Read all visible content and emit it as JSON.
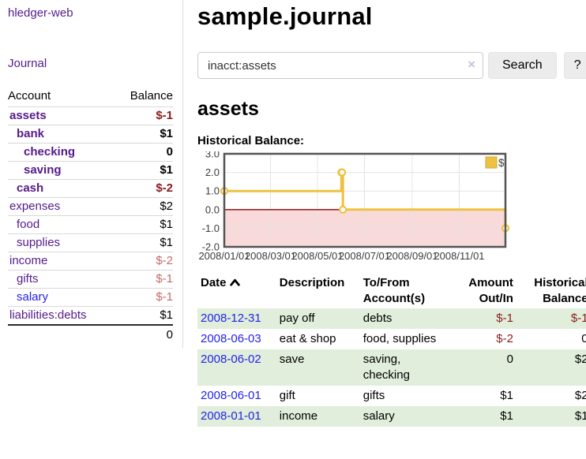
{
  "colors": {
    "link_purple": "#551a8b",
    "link_blue": "#2323e8",
    "negative_strong": "#8b1a1a",
    "negative_soft": "#c46a6a",
    "row_green": "#e0eedb",
    "chart_line_yellow": "#edc240",
    "chart_zero_line": "#8b0000",
    "chart_negative_region": "#f9dada"
  },
  "sidebar": {
    "brand": "hledger-web",
    "journal_label": "Journal",
    "accounts_header": {
      "account": "Account",
      "balance": "Balance"
    },
    "accounts": [
      {
        "name": "assets",
        "indent": 1,
        "bold": true,
        "color": "purple",
        "balance": "$-1",
        "bclass": "neg-strong"
      },
      {
        "name": "bank",
        "indent": 2,
        "bold": true,
        "color": "purple",
        "balance": "$1",
        "bclass": "pos"
      },
      {
        "name": "checking",
        "indent": 3,
        "bold": true,
        "color": "purple",
        "balance": "0",
        "bclass": "pos"
      },
      {
        "name": "saving",
        "indent": 3,
        "bold": true,
        "color": "purple",
        "balance": "$1",
        "bclass": "pos"
      },
      {
        "name": "cash",
        "indent": 2,
        "bold": true,
        "color": "purple",
        "balance": "$-2",
        "bclass": "neg-strong"
      },
      {
        "name": "expenses",
        "indent": 1,
        "bold": false,
        "color": "purple",
        "balance": "$2",
        "bclass": "pos"
      },
      {
        "name": "food",
        "indent": 2,
        "bold": false,
        "color": "purple",
        "balance": "$1",
        "bclass": "pos"
      },
      {
        "name": "supplies",
        "indent": 2,
        "bold": false,
        "color": "purple",
        "balance": "$1",
        "bclass": "pos"
      },
      {
        "name": "income",
        "indent": 1,
        "bold": false,
        "color": "purple",
        "balance": "$-2",
        "bclass": "neg-soft"
      },
      {
        "name": "gifts",
        "indent": 2,
        "bold": false,
        "color": "purple",
        "balance": "$-1",
        "bclass": "neg-soft"
      },
      {
        "name": "salary",
        "indent": 2,
        "bold": false,
        "color": "blue",
        "balance": "$-1",
        "bclass": "neg-soft"
      },
      {
        "name": "liabilities:debts",
        "indent": 1,
        "bold": false,
        "color": "purple",
        "balance": "$1",
        "bclass": "pos"
      }
    ],
    "accounts_total": "0"
  },
  "main": {
    "title": "sample.journal",
    "search": {
      "value": "inacct:assets",
      "clear_icon": "×",
      "button_label": "Search",
      "help_label": "?"
    },
    "account_heading": "assets",
    "chart_label": "Historical Balance:"
  },
  "chart_data": {
    "type": "line",
    "step": true,
    "title": "Historical Balance",
    "series": [
      {
        "name": "$",
        "color": "#edc240",
        "points": [
          [
            "2008-01-01",
            1.0
          ],
          [
            "2008-06-01",
            2.0
          ],
          [
            "2008-06-02",
            2.0
          ],
          [
            "2008-06-03",
            0.0
          ],
          [
            "2008-12-31",
            -1.0
          ]
        ]
      }
    ],
    "x_range": [
      "2008-01-01",
      "2008-12-31"
    ],
    "x_ticks": [
      {
        "date": "2008-01-01",
        "label": "2008/01/01"
      },
      {
        "date": "2008-03-01",
        "label": "2008/03/01"
      },
      {
        "date": "2008-05-01",
        "label": "2008/05/01"
      },
      {
        "date": "2008-07-01",
        "label": "2008/07/01"
      },
      {
        "date": "2008-09-01",
        "label": "2008/09/01"
      },
      {
        "date": "2008-11-01",
        "label": "2008/11/01"
      }
    ],
    "ylim": [
      -2.0,
      3.0
    ],
    "y_ticks": [
      "3.0",
      "2.0",
      "1.0",
      "0.0",
      "-1.0",
      "-2.0"
    ],
    "grid": true,
    "legend": {
      "position": "top-right",
      "entries": [
        {
          "label": "$",
          "color": "#edc240"
        }
      ]
    },
    "negative_region_shaded": true
  },
  "register": {
    "headers": {
      "date": "Date",
      "description": "Description",
      "accounts": "To/From Account(s)",
      "amount": "Amount Out/In",
      "balance": "Historical Balance"
    },
    "rows": [
      {
        "date": "2008-12-31",
        "description": "pay off",
        "accounts": "debts",
        "amount": "$-1",
        "amount_neg": true,
        "balance": "$-1",
        "balance_neg": true
      },
      {
        "date": "2008-06-03",
        "description": "eat & shop",
        "accounts": "food, supplies",
        "amount": "$-2",
        "amount_neg": true,
        "balance": "0",
        "balance_neg": false
      },
      {
        "date": "2008-06-02",
        "description": "save",
        "accounts": "saving,\nchecking",
        "amount": "0",
        "amount_neg": false,
        "balance": "$2",
        "balance_neg": false
      },
      {
        "date": "2008-06-01",
        "description": "gift",
        "accounts": "gifts",
        "amount": "$1",
        "amount_neg": false,
        "balance": "$2",
        "balance_neg": false
      },
      {
        "date": "2008-01-01",
        "description": "income",
        "accounts": "salary",
        "amount": "$1",
        "amount_neg": false,
        "balance": "$1",
        "balance_neg": false
      }
    ]
  }
}
